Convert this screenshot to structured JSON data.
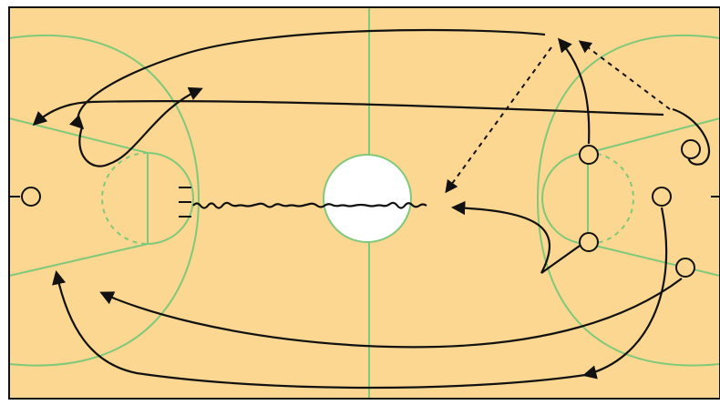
{
  "diagram": {
    "type": "basketball-court-play",
    "colors": {
      "floor": "#fcd791",
      "lines": "#7fc97a",
      "center_circle_fill": "#ffffff",
      "border": "#111111",
      "ink": "#111111"
    },
    "players": [
      {
        "id": "left-basket-player"
      },
      {
        "id": "right-elbow-top"
      },
      {
        "id": "right-elbow-bottom"
      },
      {
        "id": "right-wing-top"
      },
      {
        "id": "right-block"
      },
      {
        "id": "right-wing-bottom"
      }
    ],
    "line_styles": [
      "cut-solid",
      "pass-dashed",
      "dribble-wavy"
    ]
  }
}
